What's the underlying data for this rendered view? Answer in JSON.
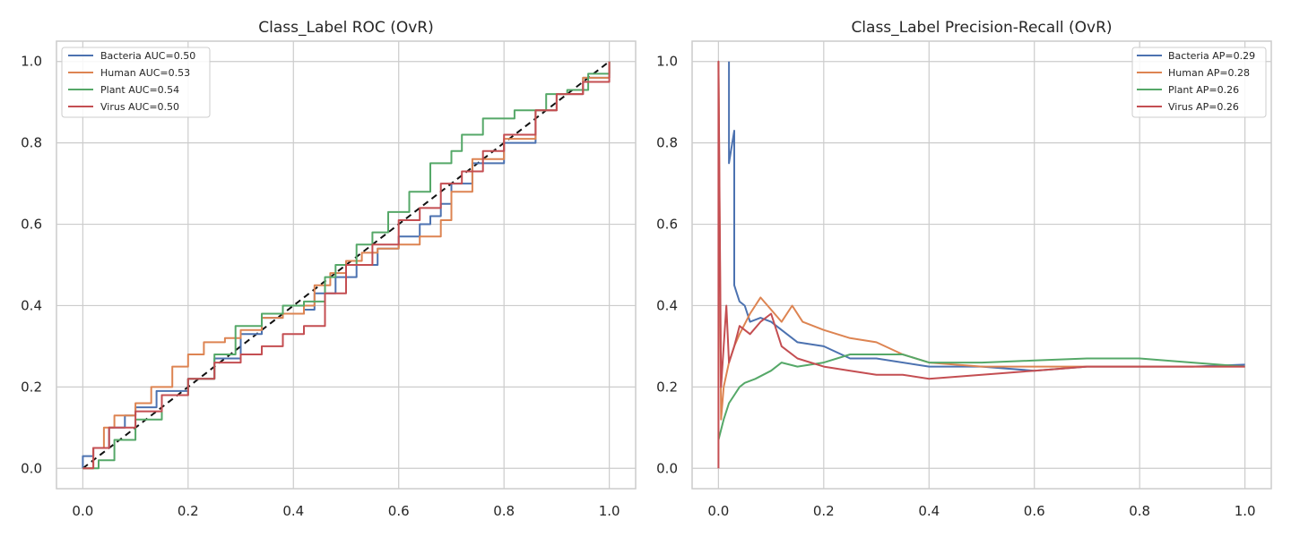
{
  "chart_data": [
    {
      "type": "line",
      "title": "Class_Label ROC (OvR)",
      "xlabel": "",
      "ylabel": "",
      "xlim": [
        -0.05,
        1.05
      ],
      "ylim": [
        -0.05,
        1.05
      ],
      "xticks": [
        "0.0",
        "0.2",
        "0.4",
        "0.6",
        "0.8",
        "1.0"
      ],
      "yticks": [
        "0.0",
        "0.2",
        "0.4",
        "0.6",
        "0.8",
        "1.0"
      ],
      "grid": true,
      "legend_position": "top-left",
      "reference_line": {
        "x": [
          0,
          1
        ],
        "y": [
          0,
          1
        ],
        "style": "dashed",
        "color": "#111111"
      },
      "series": [
        {
          "name": "Bacteria AUC=0.50",
          "color": "#4c72b0",
          "x": [
            0,
            0,
            0.02,
            0.05,
            0.08,
            0.1,
            0.14,
            0.2,
            0.25,
            0.3,
            0.34,
            0.38,
            0.42,
            0.44,
            0.48,
            0.52,
            0.56,
            0.6,
            0.64,
            0.66,
            0.68,
            0.7,
            0.74,
            0.8,
            0.86,
            0.9,
            0.95,
            1.0
          ],
          "y": [
            0,
            0.03,
            0.05,
            0.1,
            0.13,
            0.15,
            0.19,
            0.22,
            0.27,
            0.33,
            0.37,
            0.38,
            0.39,
            0.43,
            0.47,
            0.5,
            0.54,
            0.57,
            0.6,
            0.62,
            0.65,
            0.7,
            0.75,
            0.8,
            0.88,
            0.92,
            0.96,
            1.0
          ]
        },
        {
          "name": "Human AUC=0.53",
          "color": "#dd8452",
          "x": [
            0,
            0.02,
            0.04,
            0.06,
            0.1,
            0.13,
            0.17,
            0.2,
            0.23,
            0.27,
            0.3,
            0.34,
            0.38,
            0.42,
            0.44,
            0.47,
            0.5,
            0.53,
            0.56,
            0.6,
            0.64,
            0.68,
            0.7,
            0.74,
            0.8,
            0.86,
            0.9,
            0.95,
            1.0
          ],
          "y": [
            0,
            0.05,
            0.1,
            0.13,
            0.16,
            0.2,
            0.25,
            0.28,
            0.31,
            0.32,
            0.34,
            0.37,
            0.38,
            0.4,
            0.45,
            0.48,
            0.51,
            0.53,
            0.54,
            0.55,
            0.57,
            0.61,
            0.68,
            0.76,
            0.81,
            0.88,
            0.92,
            0.96,
            1.0
          ]
        },
        {
          "name": "Plant AUC=0.54",
          "color": "#55a868",
          "x": [
            0,
            0.03,
            0.06,
            0.1,
            0.15,
            0.2,
            0.25,
            0.29,
            0.34,
            0.38,
            0.42,
            0.46,
            0.48,
            0.52,
            0.55,
            0.58,
            0.62,
            0.66,
            0.7,
            0.72,
            0.76,
            0.82,
            0.88,
            0.92,
            0.96,
            1.0
          ],
          "y": [
            0,
            0.02,
            0.07,
            0.12,
            0.18,
            0.22,
            0.28,
            0.35,
            0.38,
            0.4,
            0.41,
            0.47,
            0.5,
            0.55,
            0.58,
            0.63,
            0.68,
            0.75,
            0.78,
            0.82,
            0.86,
            0.88,
            0.92,
            0.93,
            0.97,
            1.0
          ]
        },
        {
          "name": "Virus AUC=0.50",
          "color": "#c44e52",
          "x": [
            0,
            0.02,
            0.05,
            0.1,
            0.15,
            0.2,
            0.25,
            0.3,
            0.34,
            0.38,
            0.42,
            0.46,
            0.5,
            0.55,
            0.6,
            0.64,
            0.68,
            0.72,
            0.76,
            0.8,
            0.86,
            0.9,
            0.95,
            1.0
          ],
          "y": [
            0,
            0.05,
            0.1,
            0.14,
            0.18,
            0.22,
            0.26,
            0.28,
            0.3,
            0.33,
            0.35,
            0.43,
            0.5,
            0.55,
            0.61,
            0.64,
            0.7,
            0.73,
            0.78,
            0.82,
            0.88,
            0.92,
            0.95,
            1.0
          ]
        }
      ]
    },
    {
      "type": "line",
      "title": "Class_Label Precision-Recall (OvR)",
      "xlabel": "",
      "ylabel": "",
      "xlim": [
        -0.05,
        1.05
      ],
      "ylim": [
        -0.05,
        1.05
      ],
      "xticks": [
        "0.0",
        "0.2",
        "0.4",
        "0.6",
        "0.8",
        "1.0"
      ],
      "yticks": [
        "0.0",
        "0.2",
        "0.4",
        "0.6",
        "0.8",
        "1.0"
      ],
      "grid": true,
      "legend_position": "top-right",
      "series": [
        {
          "name": "Bacteria AP=0.29",
          "color": "#4c72b0",
          "x": [
            0.02,
            0.02,
            0.03,
            0.03,
            0.035,
            0.04,
            0.05,
            0.06,
            0.08,
            0.1,
            0.12,
            0.15,
            0.2,
            0.25,
            0.3,
            0.4,
            0.5,
            0.6,
            0.7,
            0.8,
            0.9,
            1.0
          ],
          "y": [
            1.0,
            0.75,
            0.83,
            0.45,
            0.43,
            0.41,
            0.4,
            0.36,
            0.37,
            0.36,
            0.34,
            0.31,
            0.3,
            0.27,
            0.27,
            0.25,
            0.25,
            0.24,
            0.25,
            0.25,
            0.25,
            0.255
          ]
        },
        {
          "name": "Human AP=0.28",
          "color": "#dd8452",
          "x": [
            0,
            0.005,
            0.01,
            0.02,
            0.03,
            0.04,
            0.06,
            0.08,
            0.1,
            0.12,
            0.14,
            0.16,
            0.2,
            0.25,
            0.3,
            0.35,
            0.4,
            0.5,
            0.6,
            0.7,
            0.8,
            0.9,
            1.0
          ],
          "y": [
            1.0,
            0.12,
            0.2,
            0.26,
            0.3,
            0.33,
            0.38,
            0.42,
            0.39,
            0.36,
            0.4,
            0.36,
            0.34,
            0.32,
            0.31,
            0.28,
            0.26,
            0.25,
            0.25,
            0.25,
            0.25,
            0.25,
            0.25
          ]
        },
        {
          "name": "Plant AP=0.26",
          "color": "#55a868",
          "x": [
            0,
            0.01,
            0.02,
            0.03,
            0.04,
            0.05,
            0.07,
            0.1,
            0.12,
            0.15,
            0.2,
            0.25,
            0.3,
            0.35,
            0.4,
            0.5,
            0.6,
            0.7,
            0.8,
            0.9,
            1.0
          ],
          "y": [
            0.07,
            0.12,
            0.16,
            0.18,
            0.2,
            0.21,
            0.22,
            0.24,
            0.26,
            0.25,
            0.26,
            0.28,
            0.28,
            0.28,
            0.26,
            0.26,
            0.265,
            0.27,
            0.27,
            0.26,
            0.25
          ]
        },
        {
          "name": "Virus AP=0.26",
          "color": "#c44e52",
          "x": [
            0,
            0,
            0.005,
            0.01,
            0.015,
            0.02,
            0.03,
            0.04,
            0.06,
            0.08,
            0.1,
            0.12,
            0.15,
            0.2,
            0.25,
            0.3,
            0.35,
            0.4,
            0.5,
            0.6,
            0.7,
            0.8,
            0.9,
            1.0
          ],
          "y": [
            0,
            1.0,
            0.2,
            0.3,
            0.4,
            0.26,
            0.3,
            0.35,
            0.33,
            0.36,
            0.38,
            0.3,
            0.27,
            0.25,
            0.24,
            0.23,
            0.23,
            0.22,
            0.23,
            0.24,
            0.25,
            0.25,
            0.25,
            0.25
          ]
        }
      ]
    }
  ]
}
